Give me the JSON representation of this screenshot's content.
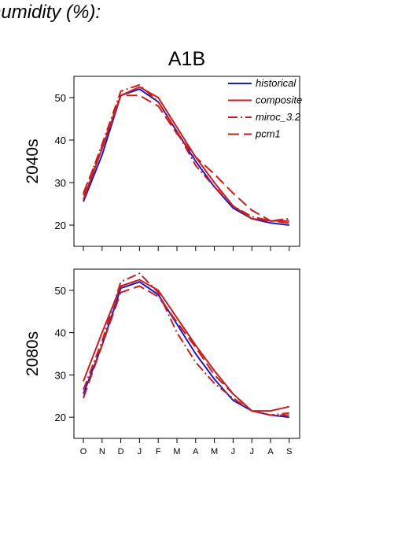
{
  "figure_title": "humidity (%):",
  "colors": {
    "historical": "#1a1ac8",
    "model": "#c81e1e"
  },
  "legend": [
    {
      "key": "historical",
      "label": "historical",
      "color": "#1a1ac8",
      "dash": "solid"
    },
    {
      "key": "composite",
      "label": "composite",
      "color": "#c81e1e",
      "dash": "solid"
    },
    {
      "key": "miroc_3.2",
      "label": "miroc_3.2",
      "color": "#c81e1e",
      "dash": "dashdot"
    },
    {
      "key": "pcm1",
      "label": "pcm1",
      "color": "#c81e1e",
      "dash": "dashed"
    }
  ],
  "chart_data": [
    {
      "type": "line",
      "title": "A1B",
      "row_label": "2040s",
      "categories": [
        "O",
        "N",
        "D",
        "J",
        "F",
        "M",
        "A",
        "M",
        "J",
        "J",
        "A",
        "S"
      ],
      "ylim": [
        15,
        55
      ],
      "yticks": [
        20,
        30,
        40,
        50
      ],
      "grid": false,
      "legend_position": "top-right",
      "series": [
        {
          "name": "historical",
          "values": [
            25.5,
            36.5,
            50.5,
            52,
            49,
            42,
            35,
            29,
            24,
            21.5,
            20.5,
            20
          ]
        },
        {
          "name": "composite",
          "values": [
            26,
            38,
            50.5,
            52.5,
            50,
            43,
            36,
            30,
            24.5,
            21.5,
            21,
            21
          ]
        },
        {
          "name": "miroc_3.2",
          "values": [
            27,
            39,
            51.5,
            53,
            49,
            42,
            34,
            29,
            24.5,
            22,
            21,
            21.5
          ]
        },
        {
          "name": "pcm1",
          "values": [
            27.5,
            38.5,
            50.5,
            50.5,
            48,
            41.5,
            36,
            32,
            27.5,
            23.5,
            21,
            20.5
          ]
        }
      ]
    },
    {
      "type": "line",
      "title": "",
      "row_label": "2080s",
      "categories": [
        "O",
        "N",
        "D",
        "J",
        "F",
        "M",
        "A",
        "M",
        "J",
        "J",
        "A",
        "S"
      ],
      "ylim": [
        15,
        55
      ],
      "yticks": [
        20,
        30,
        40,
        50
      ],
      "grid": false,
      "series": [
        {
          "name": "historical",
          "values": [
            25.5,
            37,
            50.5,
            52,
            49,
            42,
            35,
            29,
            24,
            21.5,
            20.5,
            20
          ]
        },
        {
          "name": "composite",
          "values": [
            28.5,
            40,
            51,
            52.5,
            50,
            43.5,
            37,
            31,
            25.5,
            21.5,
            21.5,
            22.5
          ]
        },
        {
          "name": "miroc_3.2",
          "values": [
            26.5,
            38,
            52,
            54,
            49.5,
            40,
            33,
            28,
            24.5,
            21.5,
            20.5,
            21
          ]
        },
        {
          "name": "pcm1",
          "values": [
            24.5,
            37,
            49.5,
            51,
            48.5,
            42.5,
            36.5,
            30,
            25.5,
            21.5,
            20.5,
            20.5
          ]
        }
      ]
    }
  ]
}
